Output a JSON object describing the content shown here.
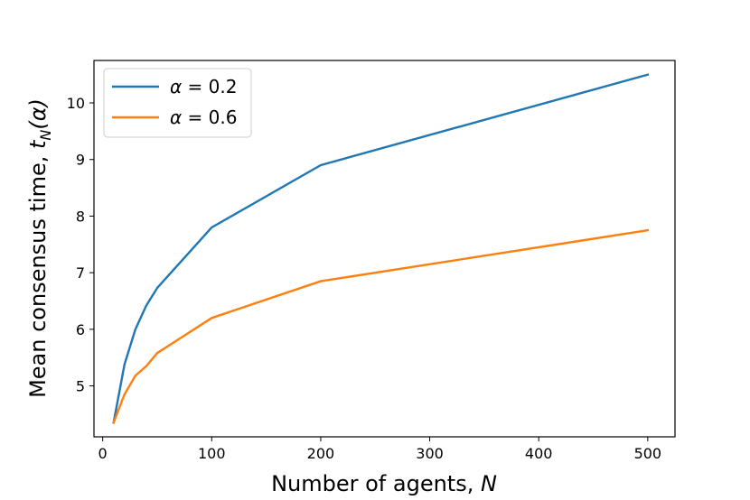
{
  "chart_data": {
    "type": "line",
    "title": "",
    "xlabel": "Number of agents, N",
    "ylabel": "Mean consensus time, t_N(α)",
    "xlim": [
      -8,
      525
    ],
    "ylim": [
      4.1,
      10.75
    ],
    "xticks": [
      0,
      100,
      200,
      300,
      400,
      500
    ],
    "yticks": [
      5,
      6,
      7,
      8,
      9,
      10
    ],
    "grid": false,
    "legend_position": "top-left",
    "series": [
      {
        "name": "α = 0.2",
        "color": "#1f77b4",
        "x": [
          10,
          20,
          30,
          40,
          50,
          100,
          200,
          500
        ],
        "y": [
          4.35,
          5.38,
          6.0,
          6.42,
          6.73,
          7.8,
          8.9,
          10.5
        ]
      },
      {
        "name": "α = 0.6",
        "color": "#ff7f0e",
        "x": [
          10,
          20,
          30,
          40,
          50,
          100,
          200,
          500
        ],
        "y": [
          4.35,
          4.85,
          5.18,
          5.35,
          5.58,
          6.2,
          6.85,
          7.75
        ]
      }
    ]
  }
}
